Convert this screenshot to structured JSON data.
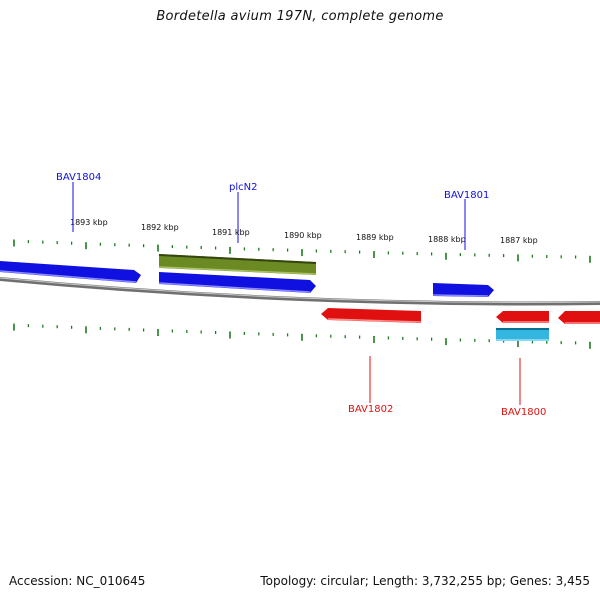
{
  "title": "Bordetella avium 197N, complete genome",
  "ruler": {
    "tick_labels": [
      "1893 kbp",
      "1892 kbp",
      "1891 kbp",
      "1890 kbp",
      "1889 kbp",
      "1888 kbp",
      "1887 kbp"
    ]
  },
  "genes": {
    "labels": [
      "BAV1804",
      "plcN2",
      "BAV1801",
      "BAV1802",
      "BAV1800"
    ],
    "forward_color": "#1010e0",
    "reverse_color": "#e01010",
    "highlight_color": "#6b8a23",
    "other_color": "#33b6e0"
  },
  "footer": {
    "accession": "Accession: NC_010645",
    "summary": "Topology: circular; Length: 3,732,255 bp; Genes: 3,455"
  }
}
